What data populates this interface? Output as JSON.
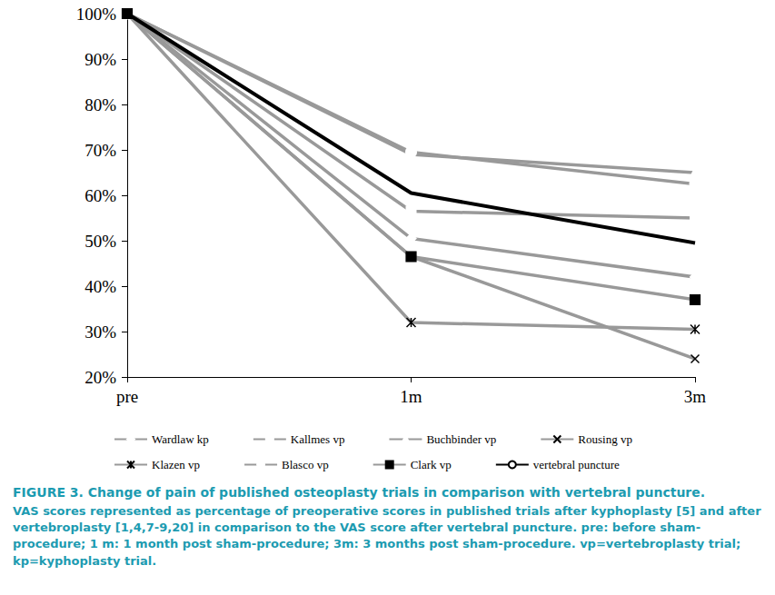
{
  "chart_data": {
    "type": "line",
    "title": "FIGURE 3. Change of pain of published osteoplasty trials in comparison with vertebral puncture.",
    "subtitle": "VAS scores represented as percentage of preoperative scores in published trials after kyphoplasty [5] and after vertebroplasty [1,4,7-9,20] in comparison to the VAS score after vertebral puncture. pre: before sham-procedure; 1 m: 1 month post sham-procedure; 3m: 3 months post sham-procedure. vp=vertebroplasty trial; kp=kyphoplasty trial.",
    "categories": [
      "pre",
      "1m",
      "3m"
    ],
    "series": [
      {
        "name": "Wardlaw kp",
        "color": "#999999",
        "marker": "diamond",
        "values": [
          100,
          50.5,
          42
        ]
      },
      {
        "name": "Kallmes vp",
        "color": "#999999",
        "marker": "square",
        "values": [
          100,
          56.5,
          55
        ]
      },
      {
        "name": "Buchbinder vp",
        "color": "#999999",
        "marker": "triangle",
        "values": [
          100,
          69,
          65
        ]
      },
      {
        "name": "Rousing vp",
        "color": "#999999",
        "marker": "x",
        "values": [
          100,
          46.5,
          24
        ]
      },
      {
        "name": "Klazen vp",
        "color": "#999999",
        "marker": "asterisk",
        "values": [
          100,
          32,
          30.5
        ]
      },
      {
        "name": "Blasco vp",
        "color": "#999999",
        "marker": "circle",
        "values": [
          100,
          69.5,
          62.5
        ]
      },
      {
        "name": "Clark vp",
        "color": "#999999",
        "marker": "filled_square",
        "values": [
          100,
          46.5,
          37
        ]
      },
      {
        "name": "vertebral puncture",
        "color": "#000000",
        "marker": "none",
        "values": [
          100,
          60.5,
          49.5
        ]
      }
    ],
    "ylim": [
      20,
      100
    ],
    "yticks": [
      {
        "value": 20,
        "label": "20%"
      },
      {
        "value": 30,
        "label": "30%"
      },
      {
        "value": 40,
        "label": "40%"
      },
      {
        "value": 50,
        "label": "50%"
      },
      {
        "value": 60,
        "label": "60%"
      },
      {
        "value": 70,
        "label": "70%"
      },
      {
        "value": 80,
        "label": "80%"
      },
      {
        "value": 90,
        "label": "90%"
      },
      {
        "value": 100,
        "label": "100%"
      }
    ],
    "grid": false,
    "legend": "bottom"
  }
}
